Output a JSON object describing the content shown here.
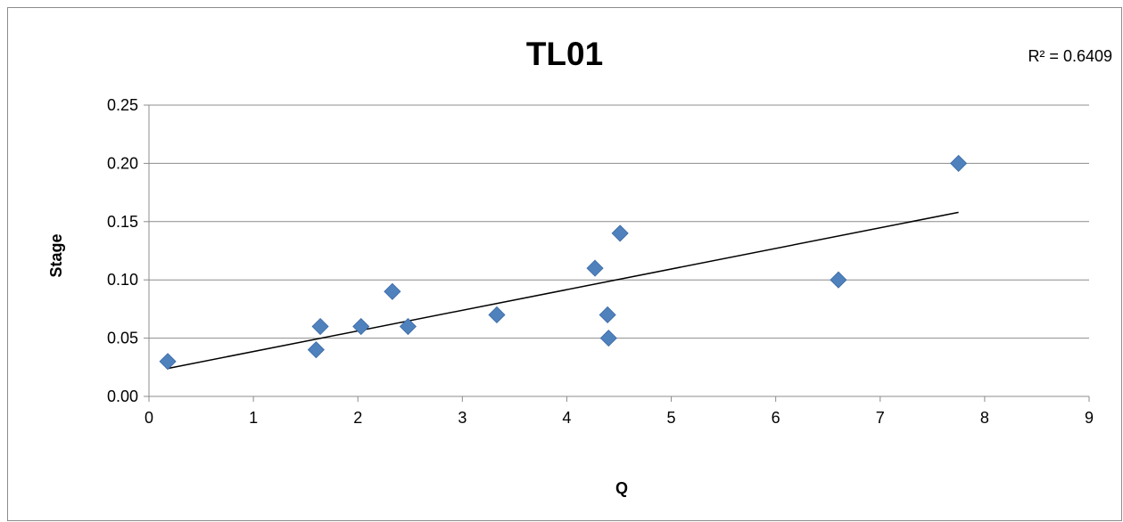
{
  "chart_data": {
    "type": "scatter",
    "title": "TL01",
    "xlabel": "Q",
    "ylabel": "Stage",
    "xlim": [
      0,
      9
    ],
    "ylim": [
      0,
      0.25
    ],
    "x_ticks": [
      "0",
      "1",
      "2",
      "3",
      "4",
      "5",
      "6",
      "7",
      "8",
      "9"
    ],
    "y_ticks": [
      "0.00",
      "0.05",
      "0.10",
      "0.15",
      "0.20",
      "0.25"
    ],
    "grid": true,
    "legend": "none",
    "series": [
      {
        "marker": "diamond",
        "color": "#4f81bd",
        "points": [
          {
            "x": 0.18,
            "y": 0.03
          },
          {
            "x": 1.6,
            "y": 0.04
          },
          {
            "x": 1.64,
            "y": 0.06
          },
          {
            "x": 2.03,
            "y": 0.06
          },
          {
            "x": 2.33,
            "y": 0.09
          },
          {
            "x": 2.48,
            "y": 0.06
          },
          {
            "x": 3.33,
            "y": 0.07
          },
          {
            "x": 4.27,
            "y": 0.11
          },
          {
            "x": 4.39,
            "y": 0.07
          },
          {
            "x": 4.4,
            "y": 0.05
          },
          {
            "x": 4.51,
            "y": 0.14
          },
          {
            "x": 6.6,
            "y": 0.1
          },
          {
            "x": 7.75,
            "y": 0.2
          }
        ]
      }
    ],
    "trendline": {
      "type": "linear",
      "color": "#000000",
      "from": {
        "x": 0.18,
        "y": 0.024
      },
      "to": {
        "x": 7.75,
        "y": 0.158
      }
    },
    "annotations": [
      {
        "text": "R² = 0.6409",
        "position": "top-right"
      }
    ]
  }
}
